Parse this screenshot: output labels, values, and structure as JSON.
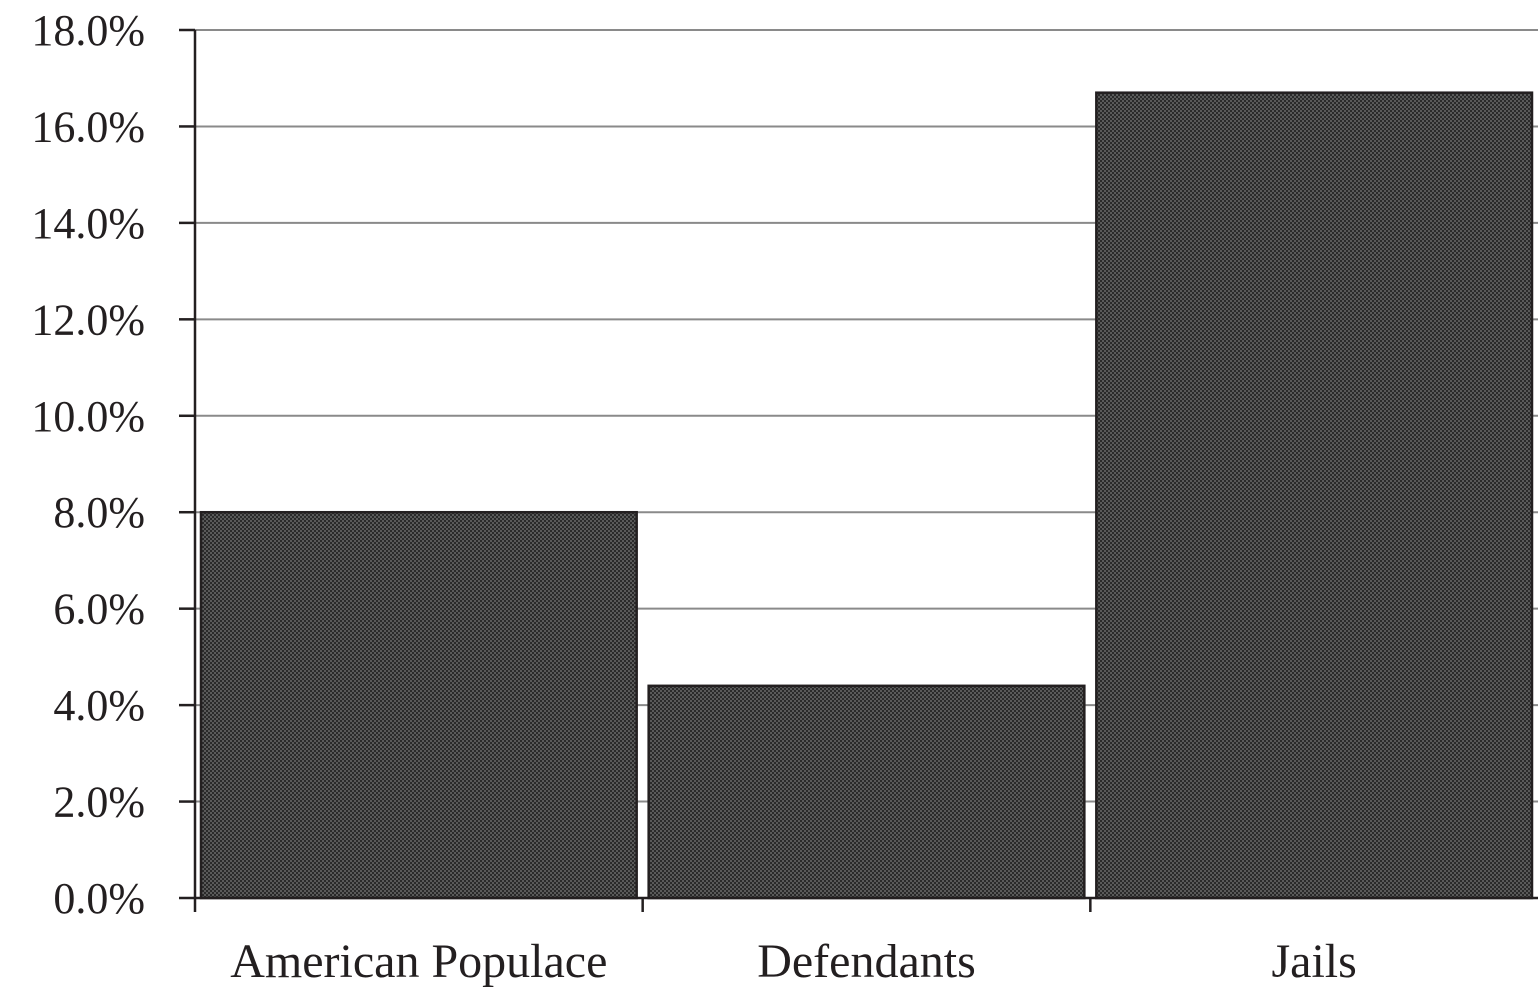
{
  "chart_data": {
    "type": "bar",
    "categories": [
      "American Populace",
      "Defendants",
      "Jails"
    ],
    "values": [
      8.0,
      4.4,
      16.7
    ],
    "ylim": [
      0,
      18
    ],
    "y_ticks": [
      0,
      2,
      4,
      6,
      8,
      10,
      12,
      14,
      16,
      18
    ],
    "y_tick_labels": [
      "0.0%",
      "2.0%",
      "4.0%",
      "6.0%",
      "8.0%",
      "10.0%",
      "12.0%",
      "14.0%",
      "16.0%",
      "18.0%"
    ],
    "title": "",
    "xlabel": "",
    "ylabel": "",
    "grid": true,
    "legend": "none",
    "bar_color": "#4a4a4a",
    "bar_pattern": "crosshatch",
    "gridline_color": "#8a8a8a",
    "text_color": "#231f20"
  }
}
